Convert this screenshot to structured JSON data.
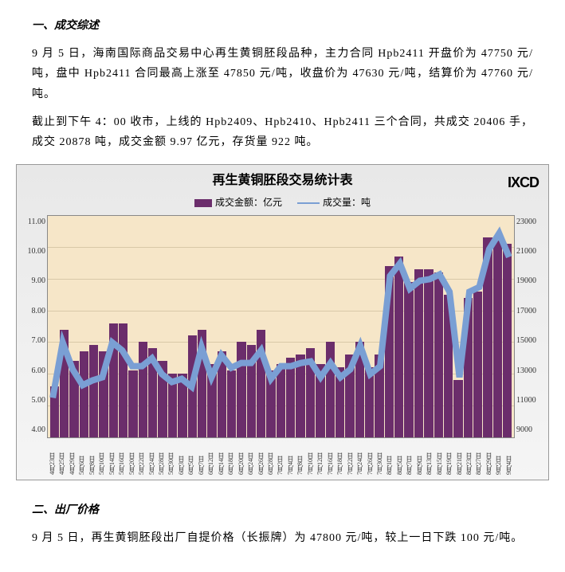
{
  "section1": {
    "title": "一、成交综述",
    "p1": "9 月 5 日，海南国际商品交易中心再生黄铜胚段品种，主力合同 Hpb2411 开盘价为 47750 元/吨，盘中 Hpb2411 合同最高上涨至 47850 元/吨，收盘价为 47630 元/吨，结算价为 47760 元/吨。",
    "p2": "截止到下午 4：00 收市，上线的 Hpb2409、Hpb2410、Hpb2411 三个合同，共成交 20406 手，成交 20878 吨，成交金额 9.97 亿元，存货量 922 吨。"
  },
  "chart": {
    "title": "再生黄铜胚段交易统计表",
    "brand": "IXCD",
    "legend_bar": "成交金额：亿元",
    "legend_line": "成交量：吨",
    "type": "bar+line",
    "background_color": "#f6e6c8",
    "bar_color": "#6b2d6b",
    "line_color": "#7a9fd4",
    "y_left": {
      "min": 4.0,
      "max": 11.0,
      "step": 1.0,
      "ticks": [
        "11.00",
        "10.00",
        "9.00",
        "8.00",
        "7.00",
        "6.00",
        "5.00",
        "4.00"
      ]
    },
    "y_right": {
      "min": 9000,
      "max": 23000,
      "step": 2000,
      "ticks": [
        "23000",
        "21000",
        "19000",
        "17000",
        "15000",
        "13000",
        "11000",
        "9000"
      ]
    },
    "categories": [
      "4月23日",
      "4月25日",
      "4月29日",
      "5月6日",
      "5月8日",
      "5月10日",
      "5月14日",
      "5月16日",
      "5月20日",
      "5月22日",
      "5月24日",
      "5月28日",
      "5月30日",
      "6月3日",
      "6月5日",
      "6月7日",
      "6月12日",
      "6月14日",
      "6月18日",
      "6月20日",
      "6月24日",
      "6月26日",
      "6月28日",
      "7月2日",
      "7月4日",
      "7月8日",
      "7月10日",
      "7月12日",
      "7月16日",
      "7月18日",
      "7月22日",
      "7月24日",
      "7月26日",
      "7月30日",
      "8月1日",
      "8月5日",
      "8月7日",
      "8月9日",
      "8月13日",
      "8月15日",
      "8月19日",
      "8月21日",
      "8月23日",
      "8月27日",
      "8月29日",
      "9月2日",
      "9月4日"
    ],
    "bar_values": [
      5.6,
      7.4,
      6.4,
      6.7,
      6.9,
      6.7,
      7.6,
      7.6,
      6.1,
      7.0,
      6.8,
      6.4,
      6.0,
      6.0,
      7.2,
      7.4,
      6.3,
      6.7,
      6.1,
      7.0,
      6.9,
      7.4,
      6.1,
      6.3,
      6.5,
      6.6,
      6.8,
      6.3,
      7.0,
      6.2,
      6.6,
      7.0,
      6.2,
      6.6,
      9.4,
      9.7,
      8.9,
      9.3,
      9.3,
      9.2,
      8.5,
      5.8,
      8.4,
      8.6,
      10.3,
      10.2,
      10.1
    ],
    "line_values": [
      11500,
      15000,
      13300,
      12300,
      12600,
      12800,
      15000,
      14500,
      13500,
      13500,
      14000,
      13000,
      12500,
      12700,
      12200,
      14700,
      12800,
      14200,
      13400,
      13700,
      13700,
      14500,
      12700,
      13500,
      13500,
      13700,
      13800,
      12800,
      13700,
      12800,
      13300,
      14800,
      13000,
      13500,
      19200,
      20000,
      18400,
      18900,
      19000,
      19300,
      18200,
      12800,
      18200,
      18500,
      20900,
      21900,
      20400
    ]
  },
  "section2": {
    "title": "二、出厂价格",
    "p1": "9 月 5 日，再生黄铜胚段出厂自提价格（长振牌）为 47800 元/吨，较上一日下跌 100 元/吨。"
  }
}
